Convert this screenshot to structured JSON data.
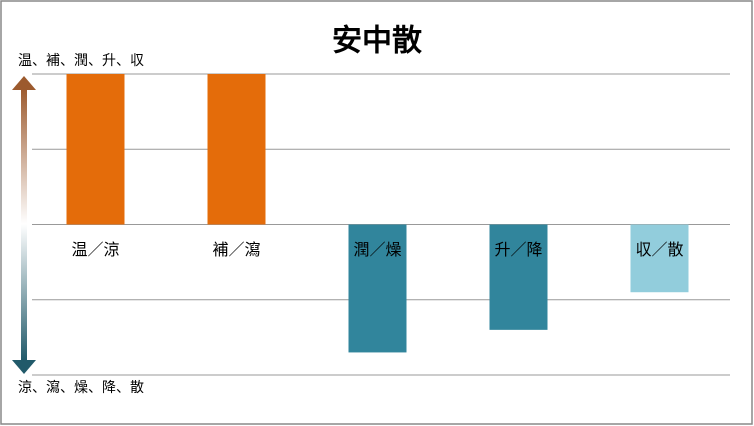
{
  "chart_data": {
    "type": "bar",
    "title": "安中散",
    "top_label": "温、補、潤、升、収",
    "bottom_label": "涼、瀉、燥、降、散",
    "categories": [
      "温／涼",
      "補／瀉",
      "潤／燥",
      "升／降",
      "収／散"
    ],
    "values": [
      2,
      2,
      -1.7,
      -1.4,
      -0.9
    ],
    "colors": [
      "#e46c0a",
      "#e46c0a",
      "#31859c",
      "#31859c",
      "#92cddc"
    ],
    "ylim": [
      -2,
      2
    ],
    "yticks": [
      -2,
      -1,
      0,
      1,
      2
    ],
    "grid": true
  }
}
